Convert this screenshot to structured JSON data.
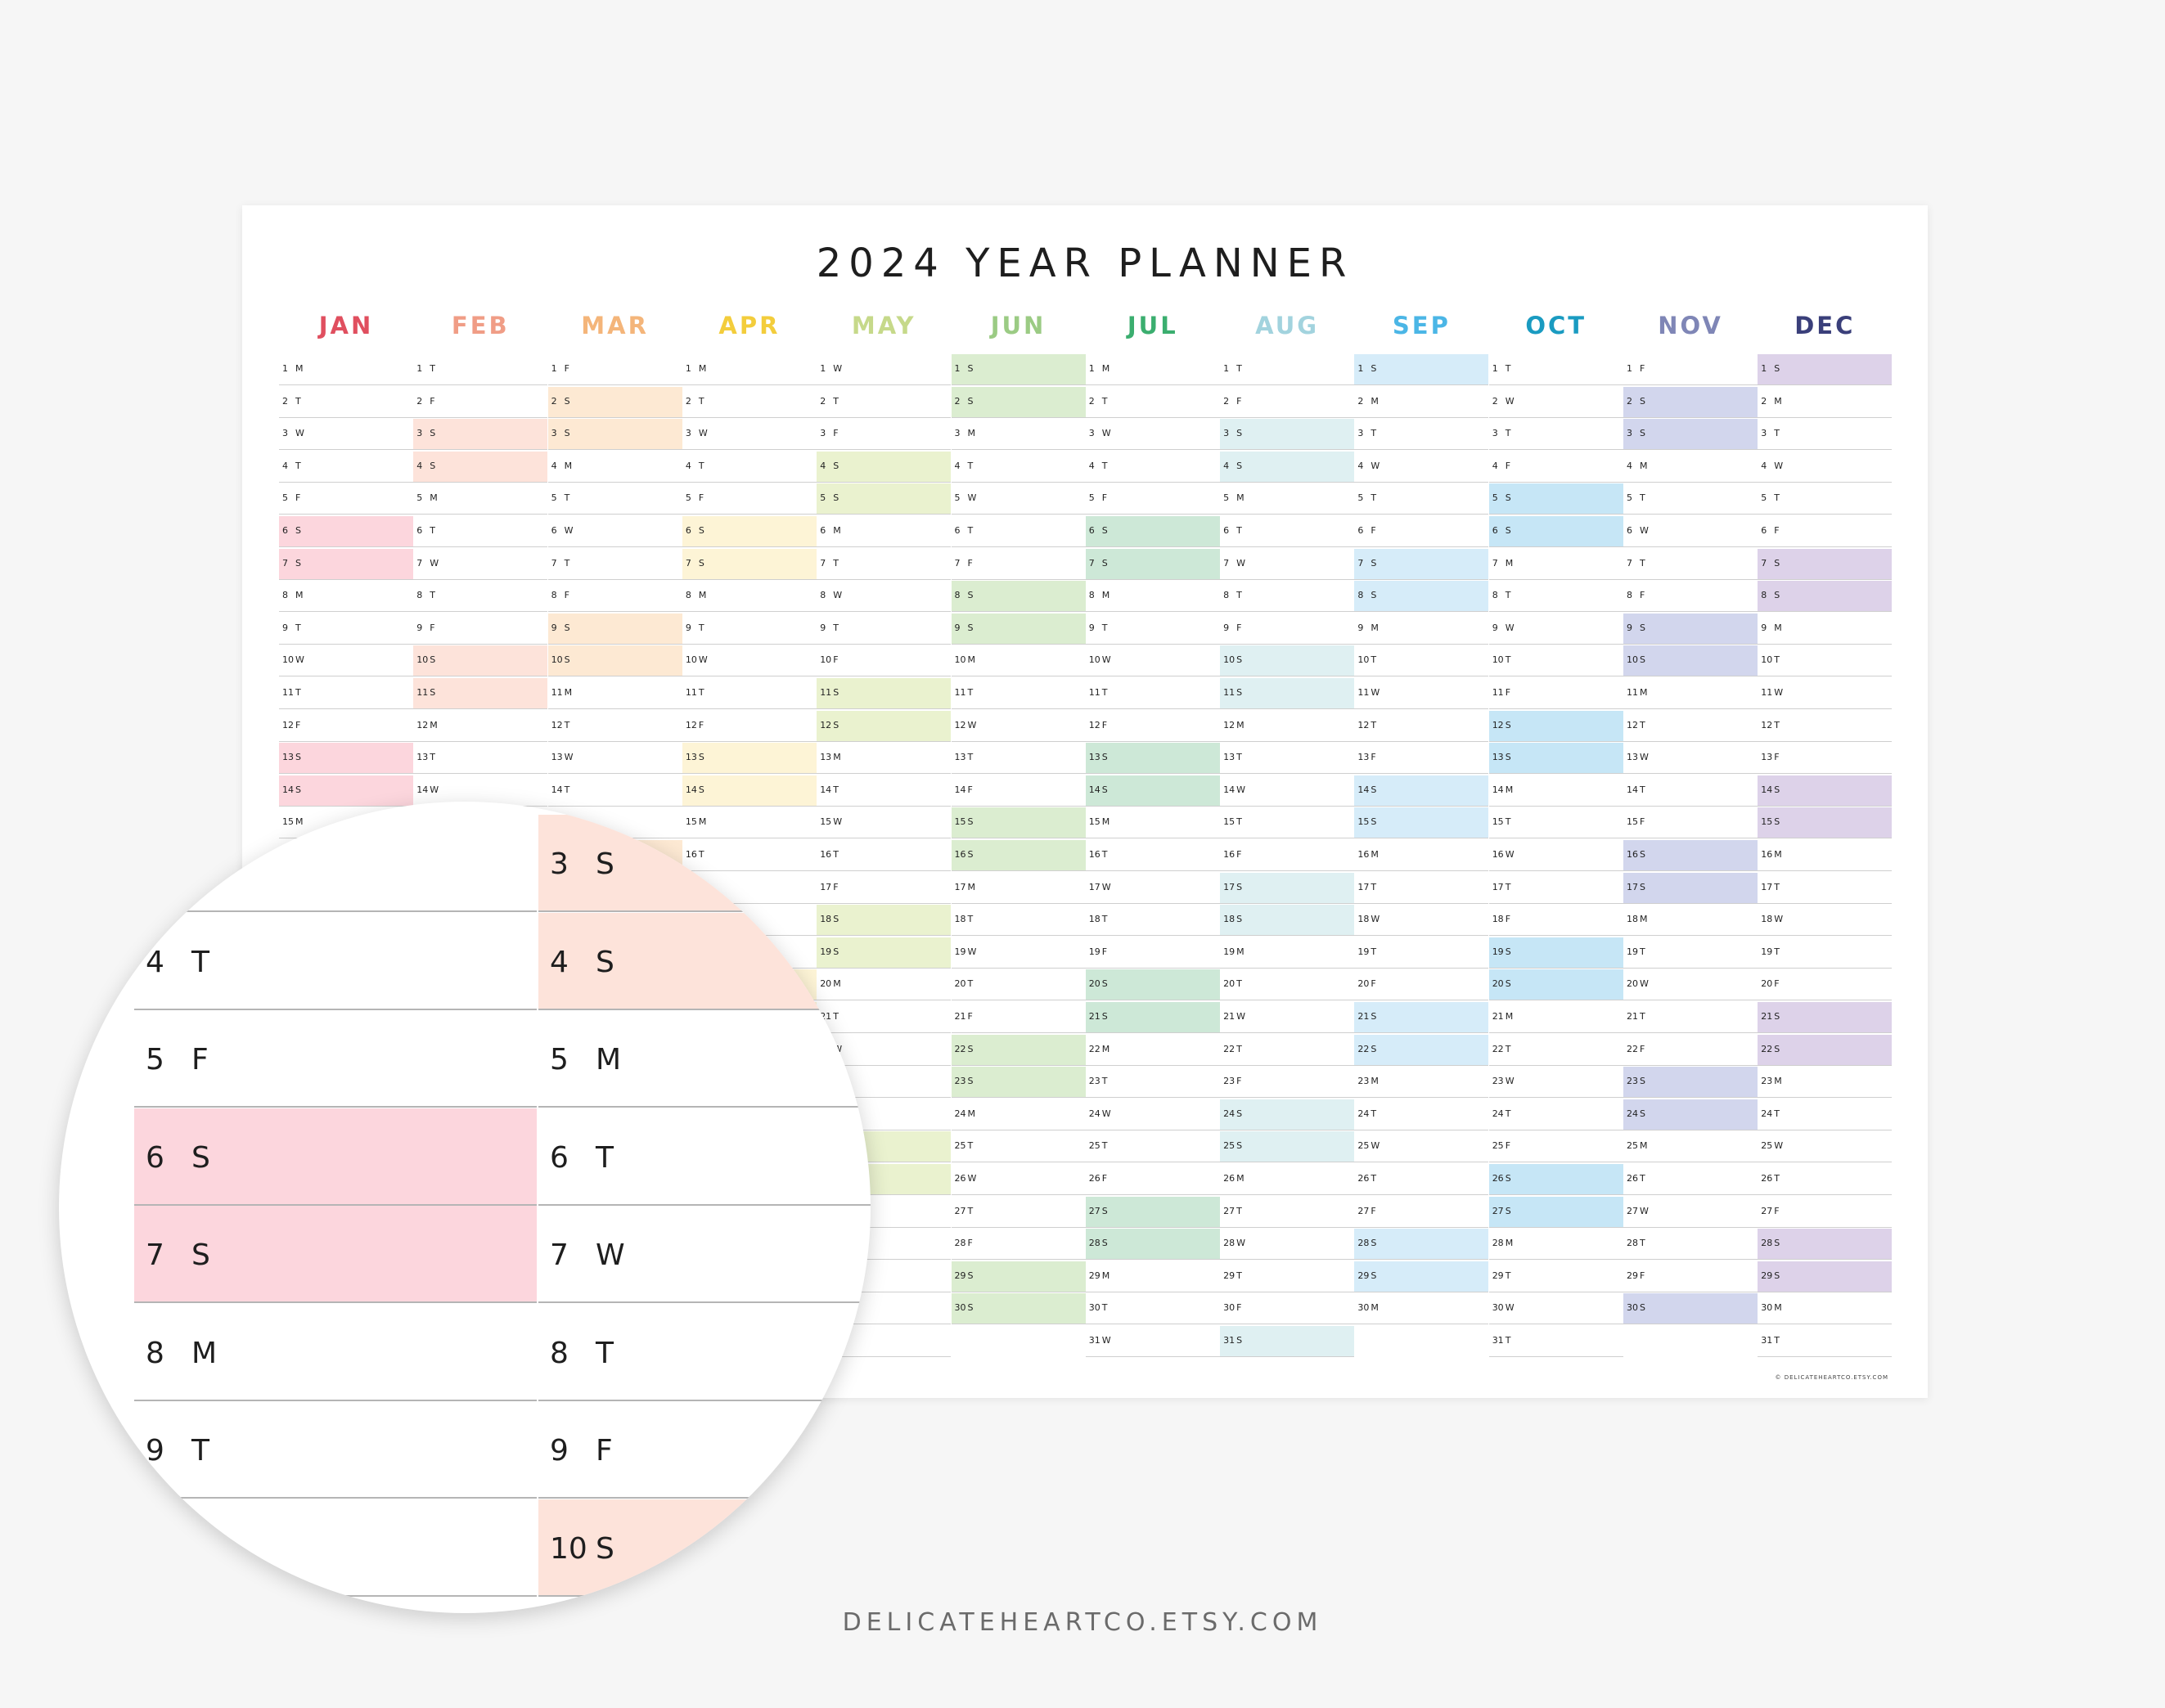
{
  "title": "2024 YEAR PLANNER",
  "year": 2024,
  "months": [
    {
      "label": "JAN",
      "color": "#e04f5f",
      "fill": "#fcd6dd"
    },
    {
      "label": "FEB",
      "color": "#f09d86",
      "fill": "#fde3da"
    },
    {
      "label": "MAR",
      "color": "#f4b57a",
      "fill": "#fde9d3"
    },
    {
      "label": "APR",
      "color": "#f3cd3c",
      "fill": "#fdf4d6"
    },
    {
      "label": "MAY",
      "color": "#c6d98a",
      "fill": "#eaf2cf"
    },
    {
      "label": "JUN",
      "color": "#9bcb84",
      "fill": "#dbedd0"
    },
    {
      "label": "JUL",
      "color": "#3bae6f",
      "fill": "#cde8d7"
    },
    {
      "label": "AUG",
      "color": "#a2d3de",
      "fill": "#dff0f2"
    },
    {
      "label": "SEP",
      "color": "#4bb6e6",
      "fill": "#d6ecf9"
    },
    {
      "label": "OCT",
      "color": "#1a9bc1",
      "fill": "#c6e6f6"
    },
    {
      "label": "NOV",
      "color": "#7f86b6",
      "fill": "#d2d6ed"
    },
    {
      "label": "DEC",
      "color": "#3a3f7a",
      "fill": "#ddd2e9"
    }
  ],
  "weekday_letters": [
    "S",
    "M",
    "T",
    "W",
    "T",
    "F",
    "S"
  ],
  "copyright": "© DELICATEHEARTCO.ETSY.COM",
  "zoom": {
    "columns": [
      [
        {
          "text": "",
          "shaded": false
        },
        {
          "text": "4 T",
          "shaded": false
        },
        {
          "text": "5 F",
          "shaded": false
        },
        {
          "text": "6 S",
          "shaded": true
        },
        {
          "text": "7 S",
          "shaded": true
        },
        {
          "text": "8 M",
          "shaded": false
        },
        {
          "text": "9 T",
          "shaded": false
        },
        {
          "text": "",
          "shaded": false
        }
      ],
      [
        {
          "text": "3 S",
          "shaded": true
        },
        {
          "text": "4 S",
          "shaded": true
        },
        {
          "text": "5 M",
          "shaded": false
        },
        {
          "text": "6 T",
          "shaded": false
        },
        {
          "text": "7 W",
          "shaded": false
        },
        {
          "text": "8 T",
          "shaded": false
        },
        {
          "text": "9 F",
          "shaded": false
        },
        {
          "text": "10 S",
          "shaded": true
        }
      ]
    ],
    "column_months": [
      0,
      1
    ]
  },
  "shop_url": "DELICATEHEARTCO.ETSY.COM"
}
